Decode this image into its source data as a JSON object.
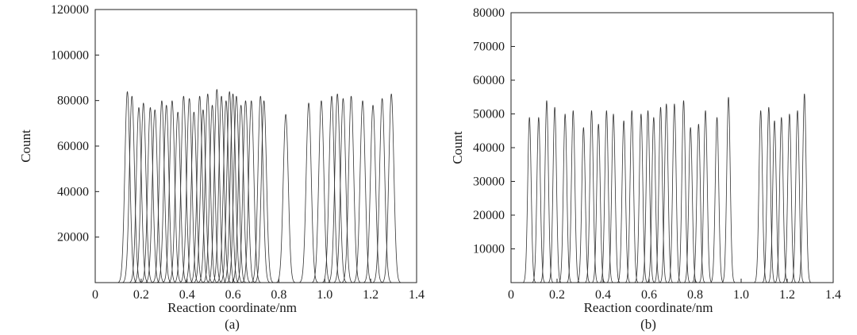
{
  "chart_data": [
    {
      "type": "line",
      "panel_label": "(a)",
      "xlabel": "Reaction coordinate/nm",
      "ylabel": "Count",
      "xlim": [
        0,
        1.4
      ],
      "ylim": [
        0,
        120000
      ],
      "xticks": [
        "0",
        "0.2",
        "0.4",
        "0.6",
        "0.8",
        "1.0",
        "1.2",
        "1.4"
      ],
      "yticks": [
        "20000",
        "40000",
        "60000",
        "80000",
        "100000",
        "120000"
      ],
      "grid": false,
      "peak_width_nm": 0.011,
      "series": [
        {
          "center": 0.14,
          "height": 84000
        },
        {
          "center": 0.16,
          "height": 82000
        },
        {
          "center": 0.19,
          "height": 77000
        },
        {
          "center": 0.21,
          "height": 79000
        },
        {
          "center": 0.24,
          "height": 77000
        },
        {
          "center": 0.26,
          "height": 76000
        },
        {
          "center": 0.29,
          "height": 80000
        },
        {
          "center": 0.31,
          "height": 78000
        },
        {
          "center": 0.335,
          "height": 80000
        },
        {
          "center": 0.36,
          "height": 75000
        },
        {
          "center": 0.385,
          "height": 82000
        },
        {
          "center": 0.41,
          "height": 81000
        },
        {
          "center": 0.43,
          "height": 75000
        },
        {
          "center": 0.455,
          "height": 82000
        },
        {
          "center": 0.47,
          "height": 76000
        },
        {
          "center": 0.49,
          "height": 83000
        },
        {
          "center": 0.51,
          "height": 78000
        },
        {
          "center": 0.53,
          "height": 85000
        },
        {
          "center": 0.55,
          "height": 82000
        },
        {
          "center": 0.57,
          "height": 80000
        },
        {
          "center": 0.585,
          "height": 84000
        },
        {
          "center": 0.6,
          "height": 83000
        },
        {
          "center": 0.615,
          "height": 82000
        },
        {
          "center": 0.635,
          "height": 78000
        },
        {
          "center": 0.655,
          "height": 80000
        },
        {
          "center": 0.68,
          "height": 80000
        },
        {
          "center": 0.72,
          "height": 82000
        },
        {
          "center": 0.735,
          "height": 80000
        },
        {
          "center": 0.83,
          "height": 74000
        },
        {
          "center": 0.93,
          "height": 79000
        },
        {
          "center": 0.985,
          "height": 80000
        },
        {
          "center": 1.03,
          "height": 82000
        },
        {
          "center": 1.055,
          "height": 83000
        },
        {
          "center": 1.08,
          "height": 81000
        },
        {
          "center": 1.115,
          "height": 82000
        },
        {
          "center": 1.165,
          "height": 80000
        },
        {
          "center": 1.21,
          "height": 78000
        },
        {
          "center": 1.25,
          "height": 81000
        },
        {
          "center": 1.29,
          "height": 83000
        }
      ]
    },
    {
      "type": "line",
      "panel_label": "(b)",
      "xlabel": "Reaction coordinate/nm",
      "ylabel": "Count",
      "xlim": [
        0,
        1.4
      ],
      "ylim": [
        0,
        80000
      ],
      "xticks": [
        "0",
        "0.2",
        "0.4",
        "0.6",
        "0.8",
        "1.0",
        "1.2",
        "1.4"
      ],
      "yticks": [
        "10000",
        "20000",
        "30000",
        "40000",
        "50000",
        "60000",
        "70000",
        "80000"
      ],
      "grid": false,
      "peak_width_nm": 0.0075,
      "series": [
        {
          "center": 0.08,
          "height": 49000
        },
        {
          "center": 0.12,
          "height": 49000
        },
        {
          "center": 0.155,
          "height": 54000
        },
        {
          "center": 0.19,
          "height": 52000
        },
        {
          "center": 0.235,
          "height": 50000
        },
        {
          "center": 0.27,
          "height": 51000
        },
        {
          "center": 0.315,
          "height": 46000
        },
        {
          "center": 0.35,
          "height": 51000
        },
        {
          "center": 0.38,
          "height": 47000
        },
        {
          "center": 0.415,
          "height": 51000
        },
        {
          "center": 0.445,
          "height": 50000
        },
        {
          "center": 0.49,
          "height": 48000
        },
        {
          "center": 0.525,
          "height": 51000
        },
        {
          "center": 0.565,
          "height": 50000
        },
        {
          "center": 0.595,
          "height": 51000
        },
        {
          "center": 0.62,
          "height": 49000
        },
        {
          "center": 0.65,
          "height": 52000
        },
        {
          "center": 0.675,
          "height": 53000
        },
        {
          "center": 0.71,
          "height": 53000
        },
        {
          "center": 0.75,
          "height": 54000
        },
        {
          "center": 0.78,
          "height": 46000
        },
        {
          "center": 0.815,
          "height": 47000
        },
        {
          "center": 0.845,
          "height": 51000
        },
        {
          "center": 0.895,
          "height": 49000
        },
        {
          "center": 0.945,
          "height": 55000
        },
        {
          "center": 1.085,
          "height": 51000
        },
        {
          "center": 1.12,
          "height": 52000
        },
        {
          "center": 1.145,
          "height": 48000
        },
        {
          "center": 1.175,
          "height": 49000
        },
        {
          "center": 1.21,
          "height": 50000
        },
        {
          "center": 1.245,
          "height": 51000
        },
        {
          "center": 1.275,
          "height": 56000
        }
      ]
    }
  ]
}
